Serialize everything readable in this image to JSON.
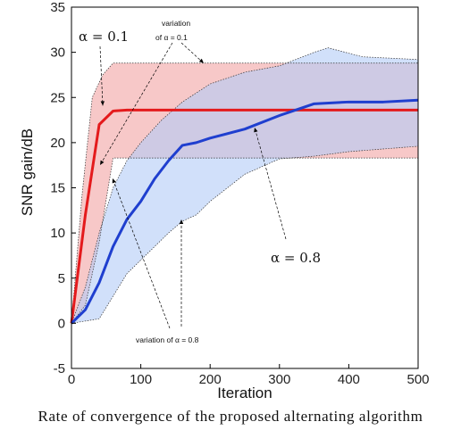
{
  "chart_data": {
    "type": "line",
    "xlabel": "Iteration",
    "ylabel": "SNR gain/dB",
    "xlim": [
      0,
      500
    ],
    "ylim": [
      -5,
      35
    ],
    "xticks": [
      0,
      100,
      200,
      300,
      400,
      500
    ],
    "yticks": [
      -5,
      0,
      5,
      10,
      15,
      20,
      25,
      30,
      35
    ],
    "grid": false,
    "box": true,
    "series": [
      {
        "name": "α = 0.1",
        "color": "#e41a1c",
        "x": [
          0,
          20,
          40,
          60,
          80,
          100,
          150,
          200,
          300,
          400,
          500
        ],
        "y": [
          0,
          12,
          22,
          23.5,
          23.6,
          23.6,
          23.6,
          23.6,
          23.6,
          23.6,
          23.6
        ],
        "band_color": "#f4b6b6",
        "band_upper": {
          "x": [
            0,
            15,
            30,
            45,
            60,
            500
          ],
          "y": [
            0,
            14,
            25,
            27.5,
            28.8,
            28.8
          ]
        },
        "band_lower": {
          "x": [
            0,
            20,
            40,
            60,
            500
          ],
          "y": [
            0,
            2,
            9,
            18.3,
            18.3
          ]
        }
      },
      {
        "name": "α = 0.8",
        "color": "#1f3fcf",
        "x": [
          0,
          20,
          40,
          60,
          80,
          100,
          120,
          140,
          160,
          180,
          200,
          250,
          300,
          350,
          400,
          450,
          500
        ],
        "y": [
          0,
          1.5,
          4.5,
          8.5,
          11.5,
          13.5,
          16,
          18,
          19.7,
          20,
          20.5,
          21.5,
          23,
          24.3,
          24.5,
          24.5,
          24.7
        ],
        "band_color": "#b3ccf6",
        "band_upper": {
          "x": [
            0,
            20,
            40,
            60,
            80,
            100,
            130,
            160,
            200,
            250,
            300,
            350,
            370,
            420,
            500
          ],
          "y": [
            0,
            4,
            10,
            15,
            18,
            20,
            22.5,
            24.5,
            26.5,
            27.8,
            28.5,
            30,
            30.5,
            29.5,
            29.2
          ]
        },
        "band_lower": {
          "x": [
            0,
            40,
            60,
            80,
            100,
            120,
            140,
            160,
            180,
            200,
            250,
            300,
            350,
            400,
            500
          ],
          "y": [
            0,
            0.5,
            3,
            5.5,
            7,
            8.5,
            10,
            11.3,
            12,
            13.5,
            16.5,
            18.2,
            18.5,
            19,
            19.6
          ]
        }
      }
    ],
    "annotations": [
      {
        "id": "alpha1",
        "text": "α = 0.1"
      },
      {
        "id": "alpha8",
        "text": "α = 0.8"
      },
      {
        "id": "var1",
        "line1": "variation",
        "line2": "of α = 0.1"
      },
      {
        "id": "var8",
        "text": "variation of α = 0.8"
      }
    ]
  },
  "caption": "Rate of convergence of the proposed alternating algorithm"
}
